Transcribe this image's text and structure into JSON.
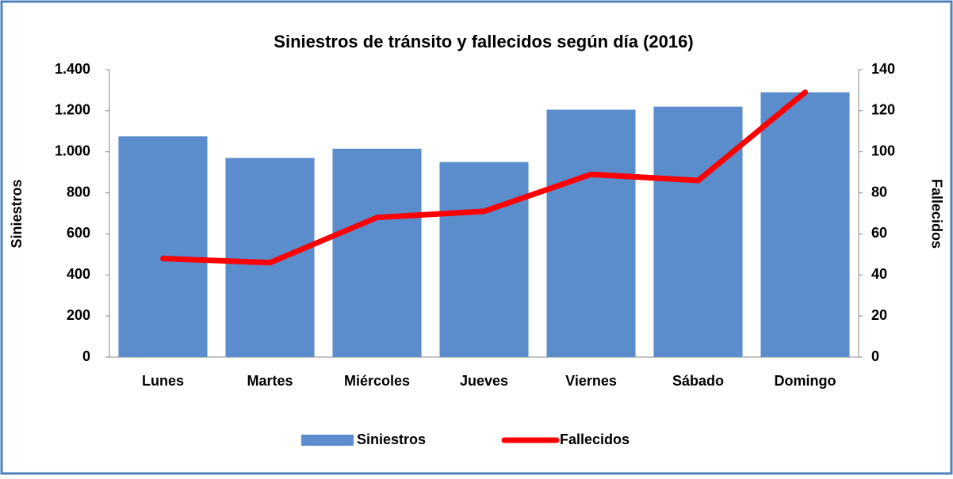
{
  "chart_data": {
    "type": "bar-line",
    "title": "Siniestros de tránsito y fallecidos según día (2016)",
    "categories": [
      "Lunes",
      "Martes",
      "Miércoles",
      "Jueves",
      "Viernes",
      "Sábado",
      "Domingo"
    ],
    "series": [
      {
        "name": "Siniestros",
        "type": "bar",
        "color": "#5b8ccc",
        "values": [
          1075,
          970,
          1015,
          950,
          1205,
          1220,
          1290
        ]
      },
      {
        "name": "Fallecidos",
        "type": "line",
        "color": "#ff0000",
        "axis": "y2",
        "values": [
          48,
          46,
          68,
          71,
          89,
          86,
          129
        ]
      }
    ],
    "ylabel": "Siniestros",
    "y2label": "Fallecidos",
    "ylim": [
      0,
      1400
    ],
    "yticks": [
      0,
      200,
      400,
      600,
      800,
      {
        "value": 1000,
        "label": "1.000"
      },
      {
        "value": 1200,
        "label": "1.200"
      },
      {
        "value": 1400,
        "label": "1.400"
      }
    ],
    "y2lim": [
      0,
      140
    ],
    "y2ticks": [
      0,
      20,
      40,
      60,
      80,
      100,
      120,
      140
    ],
    "legend": "bottom"
  }
}
